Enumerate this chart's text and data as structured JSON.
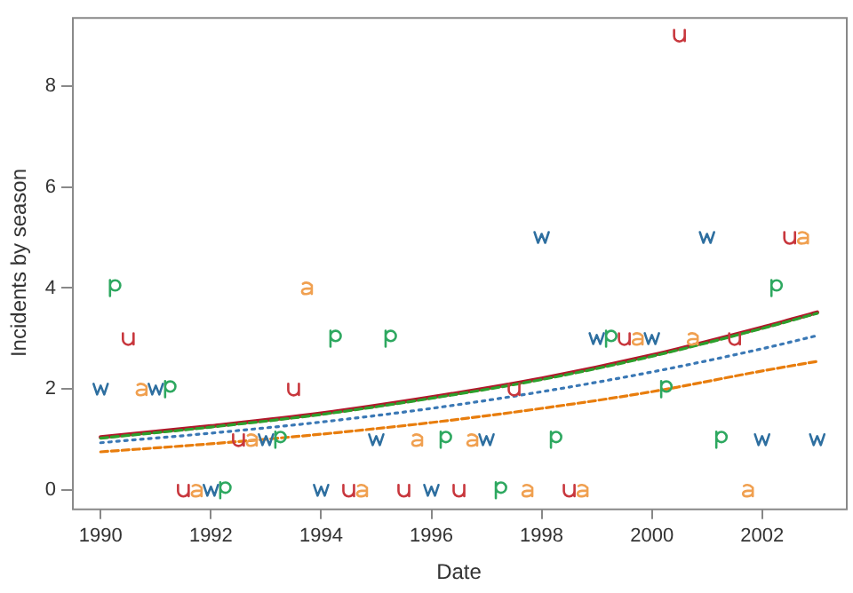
{
  "chart_data": {
    "type": "scatter",
    "xlabel": "Date",
    "ylabel": "Incidents by season",
    "xlim": [
      1989.48,
      2003.52
    ],
    "ylim": [
      -0.36,
      9.36
    ],
    "xticks": [
      1990,
      1992,
      1994,
      1996,
      1998,
      2000,
      2002
    ],
    "yticks": [
      0,
      2,
      4,
      6,
      8
    ],
    "grid": false,
    "series": [
      {
        "color": "#2e6fa0",
        "x": [
          1990,
          1991,
          1992,
          1993,
          1994,
          1995,
          1996,
          1997,
          1998,
          1999,
          2000,
          2001,
          2002,
          2003
        ],
        "values": [
          2,
          2,
          0,
          1,
          0,
          1,
          0,
          1,
          5,
          3,
          3,
          5,
          1,
          1
        ]
      },
      {
        "color": "#2ea860",
        "x": [
          1990.25,
          1991.25,
          1992.25,
          1993.25,
          1994.25,
          1995.25,
          1996.25,
          1997.25,
          1998.25,
          1999.25,
          2000.25,
          2001.25,
          2002.25
        ],
        "values": [
          4,
          2,
          0,
          1,
          3,
          3,
          1,
          0,
          1,
          3,
          2,
          1,
          4
        ]
      },
      {
        "color": "#c8373d",
        "x": [
          1990.5,
          1991.5,
          1992.5,
          1993.5,
          1994.5,
          1995.5,
          1996.5,
          1997.5,
          1998.5,
          1999.5,
          2000.5,
          2001.5,
          2002.5
        ],
        "values": [
          3,
          0,
          1,
          2,
          0,
          0,
          0,
          2,
          0,
          3,
          9,
          3,
          5
        ]
      },
      {
        "color": "#f0a050",
        "x": [
          1990.75,
          1991.75,
          1992.75,
          1993.75,
          1994.75,
          1995.75,
          1996.75,
          1997.75,
          1998.75,
          1999.75,
          2000.75,
          2001.75,
          2002.75
        ],
        "values": [
          2,
          0,
          1,
          4,
          0,
          1,
          1,
          0,
          0,
          3,
          3,
          0,
          5
        ]
      },
      {
        "type": "line",
        "color": "#b2182b",
        "line_style": "solid",
        "x": [
          1990,
          1992,
          1994,
          1996,
          1998,
          2000,
          2002,
          2003
        ],
        "values": [
          1.05,
          1.27,
          1.52,
          1.84,
          2.21,
          2.67,
          3.22,
          3.52
        ]
      },
      {
        "type": "line",
        "color": "#2ca02c",
        "line_style": "dashed",
        "x": [
          1990,
          1992,
          1994,
          1996,
          1998,
          2000,
          2002,
          2003
        ],
        "values": [
          1.03,
          1.25,
          1.5,
          1.82,
          2.19,
          2.65,
          3.2,
          3.5
        ]
      },
      {
        "type": "line",
        "color": "#3a78b5",
        "line_style": "dotted",
        "x": [
          1990,
          1992,
          1994,
          1996,
          1998,
          2000,
          2002,
          2003
        ],
        "values": [
          0.94,
          1.13,
          1.35,
          1.62,
          1.95,
          2.34,
          2.8,
          3.06
        ]
      },
      {
        "type": "line",
        "color": "#e87d0d",
        "line_style": "dashed",
        "x": [
          1990,
          1992,
          1994,
          1996,
          1998,
          2000,
          2002,
          2003
        ],
        "values": [
          0.76,
          0.92,
          1.11,
          1.34,
          1.62,
          1.95,
          2.36,
          2.55
        ]
      }
    ]
  }
}
